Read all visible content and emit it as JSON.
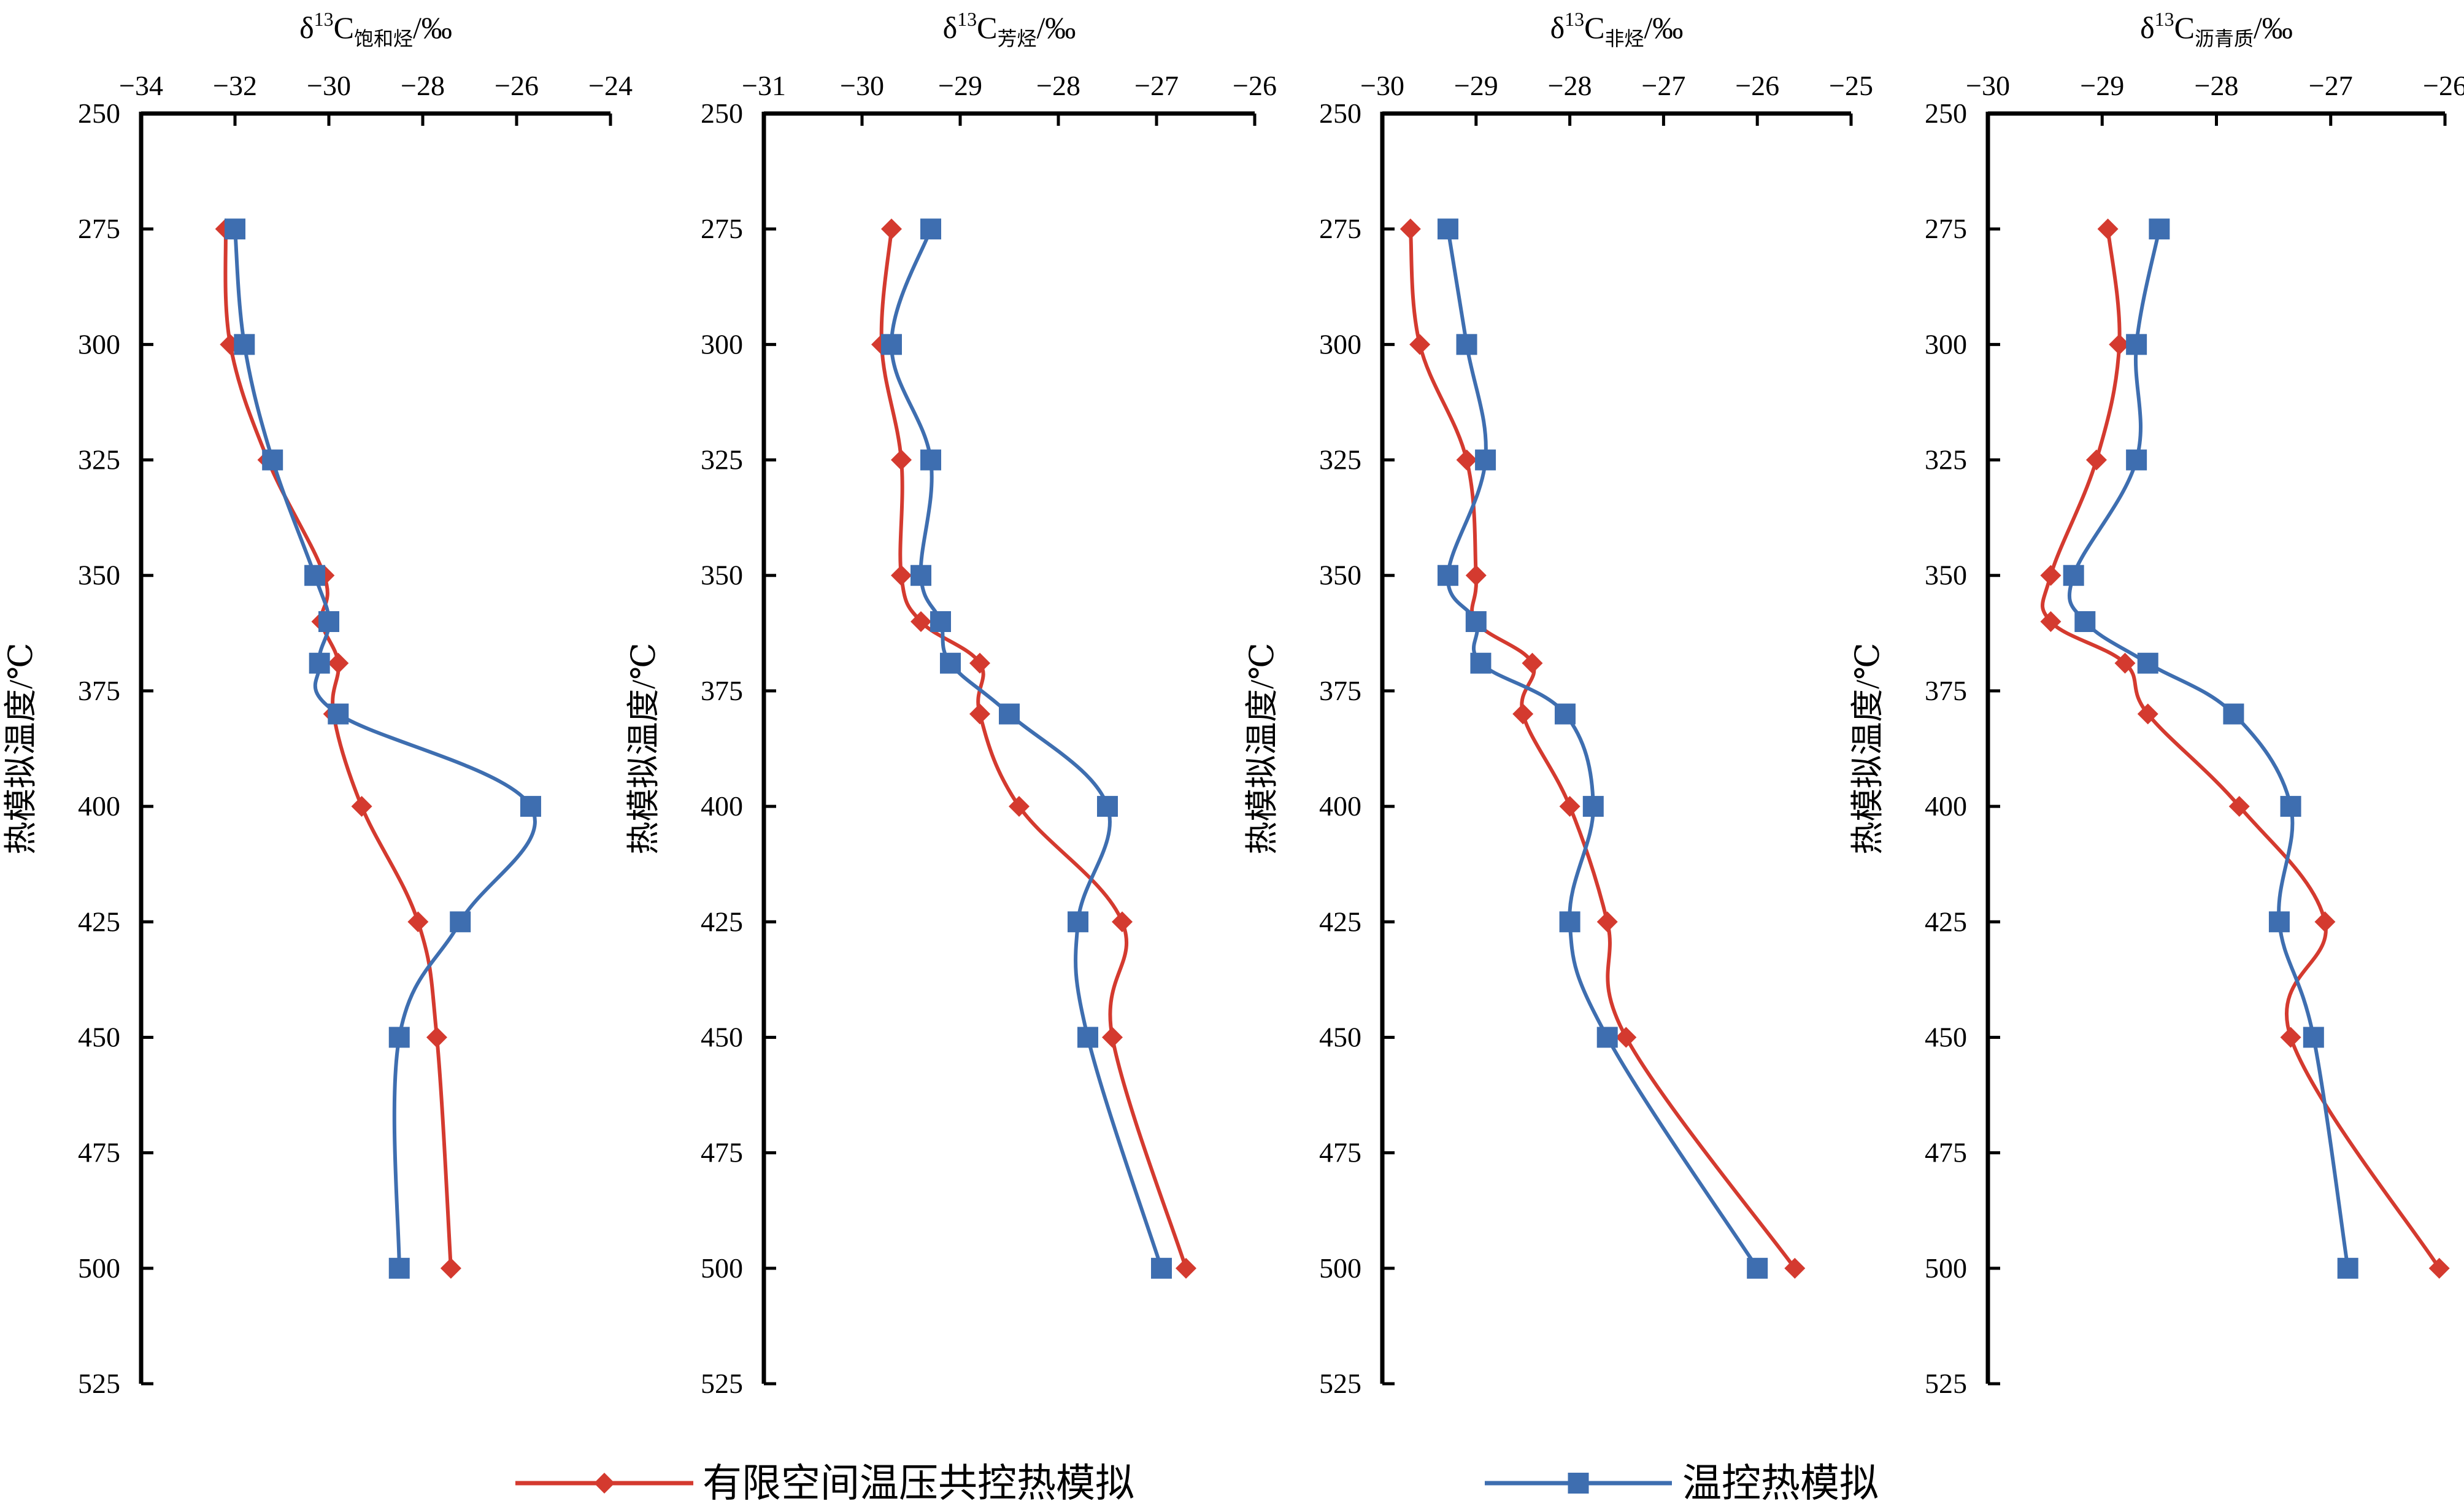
{
  "chart_data": [
    {
      "type": "line",
      "title_main": "δ",
      "title_sup": "13",
      "title_letter": "C",
      "title_sub": "饱和烃",
      "title_unit": "/‰",
      "ylabel": "热模拟温度/℃",
      "xlim": [
        -34,
        -24
      ],
      "xticks": [
        -34,
        -32,
        -30,
        -28,
        -26,
        -24
      ],
      "xtick_labels": [
        "−34",
        "−32",
        "−30",
        "−28",
        "−26",
        "−24"
      ],
      "ylim": [
        250,
        525
      ],
      "yticks": [
        250,
        275,
        300,
        325,
        350,
        375,
        400,
        425,
        450,
        475,
        500,
        525
      ],
      "y_inverted": true,
      "series": [
        {
          "name": "有限空间温压共控热模拟",
          "marker": "diamond",
          "color": "#d43a2f",
          "points": [
            [
              -32.2,
              275
            ],
            [
              -32.1,
              300
            ],
            [
              -31.3,
              325
            ],
            [
              -30.1,
              350
            ],
            [
              -30.15,
              360
            ],
            [
              -29.8,
              369
            ],
            [
              -29.9,
              380
            ],
            [
              -29.3,
              400
            ],
            [
              -28.1,
              425
            ],
            [
              -27.7,
              450
            ],
            [
              -27.4,
              500
            ]
          ]
        },
        {
          "name": "温控热模拟",
          "marker": "square",
          "color": "#3e6eb0",
          "points": [
            [
              -32.0,
              275
            ],
            [
              -31.8,
              300
            ],
            [
              -31.2,
              325
            ],
            [
              -30.3,
              350
            ],
            [
              -30.0,
              360
            ],
            [
              -30.2,
              369
            ],
            [
              -29.8,
              380
            ],
            [
              -25.7,
              400
            ],
            [
              -27.2,
              425
            ],
            [
              -28.5,
              450
            ],
            [
              -28.5,
              500
            ]
          ]
        }
      ]
    },
    {
      "type": "line",
      "title_main": "δ",
      "title_sup": "13",
      "title_letter": "C",
      "title_sub": "芳烃",
      "title_unit": "/‰",
      "ylabel": "热模拟温度/℃",
      "xlim": [
        -31,
        -26
      ],
      "xticks": [
        -31,
        -30,
        -29,
        -28,
        -27,
        -26
      ],
      "xtick_labels": [
        "−31",
        "−30",
        "−29",
        "−28",
        "−27",
        "−26"
      ],
      "ylim": [
        250,
        525
      ],
      "yticks": [
        250,
        275,
        300,
        325,
        350,
        375,
        400,
        425,
        450,
        475,
        500,
        525
      ],
      "y_inverted": true,
      "series": [
        {
          "name": "有限空间温压共控热模拟",
          "marker": "diamond",
          "color": "#d43a2f",
          "points": [
            [
              -29.7,
              275
            ],
            [
              -29.8,
              300
            ],
            [
              -29.6,
              325
            ],
            [
              -29.6,
              350
            ],
            [
              -29.4,
              360
            ],
            [
              -28.8,
              369
            ],
            [
              -28.8,
              380
            ],
            [
              -28.4,
              400
            ],
            [
              -27.35,
              425
            ],
            [
              -27.45,
              450
            ],
            [
              -26.7,
              500
            ]
          ]
        },
        {
          "name": "温控热模拟",
          "marker": "square",
          "color": "#3e6eb0",
          "points": [
            [
              -29.3,
              275
            ],
            [
              -29.7,
              300
            ],
            [
              -29.3,
              325
            ],
            [
              -29.4,
              350
            ],
            [
              -29.2,
              360
            ],
            [
              -29.1,
              369
            ],
            [
              -28.5,
              380
            ],
            [
              -27.5,
              400
            ],
            [
              -27.8,
              425
            ],
            [
              -27.7,
              450
            ],
            [
              -26.95,
              500
            ]
          ]
        }
      ]
    },
    {
      "type": "line",
      "title_main": "δ",
      "title_sup": "13",
      "title_letter": "C",
      "title_sub": "非烃",
      "title_unit": "/‰",
      "ylabel": "热模拟温度/℃",
      "xlim": [
        -30,
        -25
      ],
      "xticks": [
        -30,
        -29,
        -28,
        -27,
        -26,
        -25
      ],
      "xtick_labels": [
        "−30",
        "−29",
        "−28",
        "−27",
        "−26",
        "−25"
      ],
      "ylim": [
        250,
        525
      ],
      "yticks": [
        250,
        275,
        300,
        325,
        350,
        375,
        400,
        425,
        450,
        475,
        500,
        525
      ],
      "y_inverted": true,
      "series": [
        {
          "name": "有限空间温压共控热模拟",
          "marker": "diamond",
          "color": "#d43a2f",
          "points": [
            [
              -29.7,
              275
            ],
            [
              -29.6,
              300
            ],
            [
              -29.1,
              325
            ],
            [
              -29.0,
              350
            ],
            [
              -29.0,
              360
            ],
            [
              -28.4,
              369
            ],
            [
              -28.5,
              380
            ],
            [
              -28.0,
              400
            ],
            [
              -27.6,
              425
            ],
            [
              -27.4,
              450
            ],
            [
              -25.6,
              500
            ]
          ]
        },
        {
          "name": "温控热模拟",
          "marker": "square",
          "color": "#3e6eb0",
          "points": [
            [
              -29.3,
              275
            ],
            [
              -29.1,
              300
            ],
            [
              -28.9,
              325
            ],
            [
              -29.3,
              350
            ],
            [
              -29.0,
              360
            ],
            [
              -28.95,
              369
            ],
            [
              -28.05,
              380
            ],
            [
              -27.75,
              400
            ],
            [
              -28.0,
              425
            ],
            [
              -27.6,
              450
            ],
            [
              -26.0,
              500
            ]
          ]
        }
      ]
    },
    {
      "type": "line",
      "title_main": "δ",
      "title_sup": "13",
      "title_letter": "C",
      "title_sub": "沥青质",
      "title_unit": "/‰",
      "ylabel": "热模拟温度/℃",
      "xlim": [
        -30,
        -26
      ],
      "xticks": [
        -30,
        -29,
        -28,
        -27,
        -26
      ],
      "xtick_labels": [
        "−30",
        "−29",
        "−28",
        "−27",
        "−26"
      ],
      "ylim": [
        250,
        525
      ],
      "yticks": [
        250,
        275,
        300,
        325,
        350,
        375,
        400,
        425,
        450,
        475,
        500,
        525
      ],
      "y_inverted": true,
      "series": [
        {
          "name": "有限空间温压共控热模拟",
          "marker": "diamond",
          "color": "#d43a2f",
          "points": [
            [
              -28.95,
              275
            ],
            [
              -28.85,
              300
            ],
            [
              -29.05,
              325
            ],
            [
              -29.45,
              350
            ],
            [
              -29.45,
              360
            ],
            [
              -28.8,
              369
            ],
            [
              -28.6,
              380
            ],
            [
              -27.8,
              400
            ],
            [
              -27.05,
              425
            ],
            [
              -27.35,
              450
            ],
            [
              -26.05,
              500
            ]
          ]
        },
        {
          "name": "温控热模拟",
          "marker": "square",
          "color": "#3e6eb0",
          "points": [
            [
              -28.5,
              275
            ],
            [
              -28.7,
              300
            ],
            [
              -28.7,
              325
            ],
            [
              -29.25,
              350
            ],
            [
              -29.15,
              360
            ],
            [
              -28.6,
              369
            ],
            [
              -27.85,
              380
            ],
            [
              -27.35,
              400
            ],
            [
              -27.45,
              425
            ],
            [
              -27.15,
              450
            ],
            [
              -26.85,
              500
            ]
          ]
        }
      ]
    }
  ],
  "legend": {
    "items": [
      {
        "label": "有限空间温压共控热模拟",
        "marker": "diamond",
        "color": "#d43a2f"
      },
      {
        "label": "温控热模拟",
        "marker": "square",
        "color": "#3e6eb0"
      }
    ],
    "placement": "bottom"
  }
}
